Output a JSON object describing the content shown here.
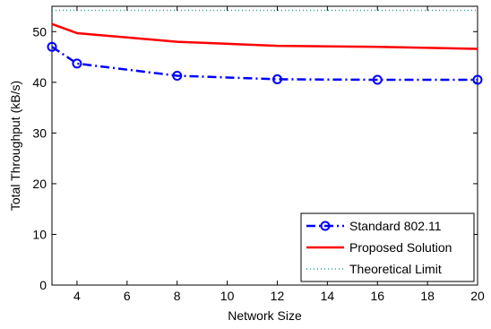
{
  "chart_data": {
    "type": "line",
    "title": "",
    "xlabel": "Network Size",
    "ylabel": "Total Throughput (kB/s)",
    "xlim": [
      3,
      20
    ],
    "ylim": [
      0,
      55
    ],
    "xticks": [
      4,
      6,
      8,
      10,
      12,
      14,
      16,
      18,
      20
    ],
    "yticks": [
      0,
      10,
      20,
      30,
      40,
      50
    ],
    "grid": false,
    "legend_position": "bottom-right",
    "series": [
      {
        "name": "Standard 802.11",
        "color": "#0000ff",
        "line_style": "dash-dot",
        "marker": "circle",
        "x": [
          3,
          4,
          8,
          12,
          16,
          20
        ],
        "y": [
          47.0,
          43.7,
          41.3,
          40.6,
          40.5,
          40.5
        ]
      },
      {
        "name": "Proposed Solution",
        "color": "#ff0000",
        "line_style": "solid",
        "marker": "none",
        "x": [
          3,
          4,
          8,
          12,
          16,
          20
        ],
        "y": [
          51.5,
          49.7,
          48.0,
          47.2,
          47.0,
          46.6
        ]
      },
      {
        "name": "Theoretical Limit",
        "color": "#339999",
        "line_style": "dotted",
        "marker": "none",
        "x": [
          3,
          20
        ],
        "y": [
          54.2,
          54.2
        ]
      }
    ]
  }
}
